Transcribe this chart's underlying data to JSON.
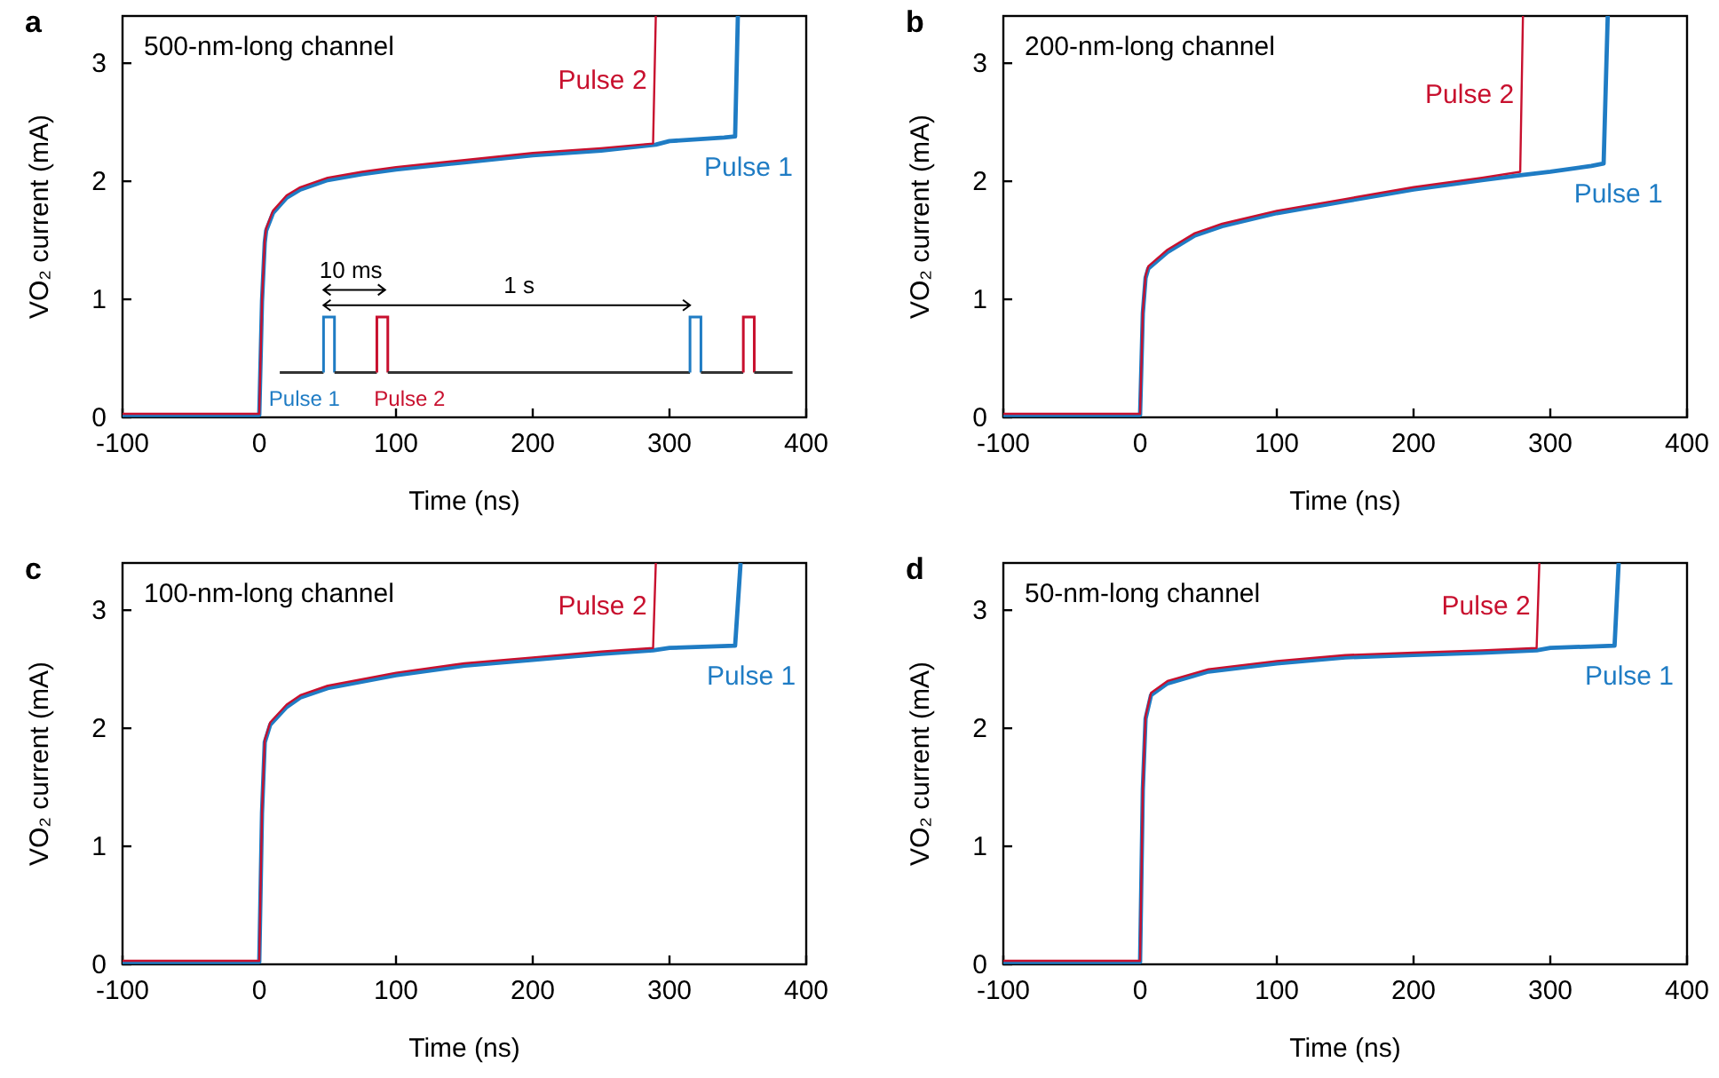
{
  "chart_data": [
    {
      "type": "line",
      "title": "a",
      "xlabel": "Time (ns)",
      "ylabel": "VO₂ current (mA)",
      "xlim": [
        -100,
        400
      ],
      "xticks": [
        -100,
        0,
        100,
        200,
        300,
        400
      ],
      "ylim": [
        0,
        3.4
      ],
      "yticks": [
        0,
        1,
        2,
        3
      ],
      "grid": false,
      "legend": false,
      "annotations": [
        "500-nm-long channel",
        "10 ms",
        "1 s",
        "Pulse 1",
        "Pulse 2"
      ],
      "series": [
        {
          "name": "Pulse 1",
          "color": "#1f7cc4",
          "x": [
            -100,
            0,
            2,
            4,
            5,
            10,
            20,
            30,
            50,
            75,
            100,
            150,
            200,
            250,
            290,
            300,
            340,
            348,
            350
          ],
          "values": [
            0.02,
            0.02,
            0.98,
            1.48,
            1.58,
            1.73,
            1.86,
            1.93,
            2.01,
            2.06,
            2.1,
            2.16,
            2.22,
            2.26,
            2.31,
            2.34,
            2.37,
            2.38,
            3.4
          ]
        },
        {
          "name": "Pulse 2",
          "color": "#c8102e",
          "x": [
            -100,
            0,
            2,
            4,
            5,
            10,
            20,
            30,
            50,
            75,
            100,
            150,
            200,
            250,
            288,
            290
          ],
          "values": [
            0.03,
            0.03,
            1.0,
            1.5,
            1.6,
            1.75,
            1.88,
            1.95,
            2.03,
            2.08,
            2.12,
            2.18,
            2.24,
            2.28,
            2.32,
            3.4
          ]
        }
      ]
    },
    {
      "type": "line",
      "title": "b",
      "xlabel": "Time (ns)",
      "ylabel": "VO₂ current (mA)",
      "xlim": [
        -100,
        400
      ],
      "xticks": [
        -100,
        0,
        100,
        200,
        300,
        400
      ],
      "ylim": [
        0,
        3.4
      ],
      "yticks": [
        0,
        1,
        2,
        3
      ],
      "grid": false,
      "legend": false,
      "annotations": [
        "200-nm-long channel"
      ],
      "series": [
        {
          "name": "Pulse 1",
          "color": "#1f7cc4",
          "x": [
            -100,
            0,
            2,
            4,
            6,
            20,
            40,
            60,
            100,
            150,
            200,
            250,
            278,
            300,
            330,
            339,
            342
          ],
          "values": [
            0.02,
            0.02,
            0.88,
            1.18,
            1.26,
            1.4,
            1.54,
            1.62,
            1.73,
            1.83,
            1.93,
            2.01,
            2.05,
            2.08,
            2.13,
            2.15,
            3.4
          ]
        },
        {
          "name": "Pulse 2",
          "color": "#c8102e",
          "x": [
            -100,
            0,
            2,
            4,
            6,
            20,
            40,
            60,
            100,
            150,
            200,
            250,
            278,
            280
          ],
          "values": [
            0.03,
            0.03,
            0.9,
            1.2,
            1.28,
            1.42,
            1.56,
            1.64,
            1.75,
            1.85,
            1.95,
            2.03,
            2.08,
            3.4
          ]
        }
      ]
    },
    {
      "type": "line",
      "title": "c",
      "xlabel": "Time (ns)",
      "ylabel": "VO₂ current (mA)",
      "xlim": [
        -100,
        400
      ],
      "xticks": [
        -100,
        0,
        100,
        200,
        300,
        400
      ],
      "ylim": [
        0,
        3.4
      ],
      "yticks": [
        0,
        1,
        2,
        3
      ],
      "grid": false,
      "legend": false,
      "annotations": [
        "100-nm-long channel"
      ],
      "series": [
        {
          "name": "Pulse 1",
          "color": "#1f7cc4",
          "x": [
            -100,
            0,
            2,
            4,
            8,
            20,
            30,
            50,
            100,
            150,
            200,
            250,
            288,
            300,
            348,
            352
          ],
          "values": [
            0.02,
            0.02,
            1.28,
            1.88,
            2.03,
            2.18,
            2.26,
            2.34,
            2.45,
            2.53,
            2.58,
            2.63,
            2.66,
            2.68,
            2.7,
            3.4
          ]
        },
        {
          "name": "Pulse 2",
          "color": "#c8102e",
          "x": [
            -100,
            0,
            2,
            4,
            8,
            20,
            30,
            50,
            100,
            150,
            200,
            250,
            288,
            290
          ],
          "values": [
            0.03,
            0.03,
            1.3,
            1.9,
            2.05,
            2.2,
            2.28,
            2.36,
            2.47,
            2.55,
            2.6,
            2.65,
            2.68,
            3.4
          ]
        }
      ]
    },
    {
      "type": "line",
      "title": "d",
      "xlabel": "Time (ns)",
      "ylabel": "VO₂ current (mA)",
      "xlim": [
        -100,
        400
      ],
      "xticks": [
        -100,
        0,
        100,
        200,
        300,
        400
      ],
      "ylim": [
        0,
        3.4
      ],
      "yticks": [
        0,
        1,
        2,
        3
      ],
      "grid": false,
      "legend": false,
      "annotations": [
        "50-nm-long channel"
      ],
      "series": [
        {
          "name": "Pulse 1",
          "color": "#1f7cc4",
          "x": [
            -100,
            0,
            2,
            4,
            8,
            20,
            50,
            100,
            150,
            200,
            250,
            290,
            300,
            347,
            350
          ],
          "values": [
            0.02,
            0.02,
            1.48,
            2.08,
            2.28,
            2.38,
            2.48,
            2.55,
            2.6,
            2.62,
            2.64,
            2.66,
            2.68,
            2.7,
            3.4
          ]
        },
        {
          "name": "Pulse 2",
          "color": "#c8102e",
          "x": [
            -100,
            0,
            2,
            4,
            8,
            20,
            50,
            100,
            150,
            200,
            250,
            290,
            292
          ],
          "values": [
            0.03,
            0.03,
            1.5,
            2.1,
            2.3,
            2.4,
            2.5,
            2.57,
            2.62,
            2.64,
            2.66,
            2.68,
            3.4
          ]
        }
      ]
    }
  ]
}
